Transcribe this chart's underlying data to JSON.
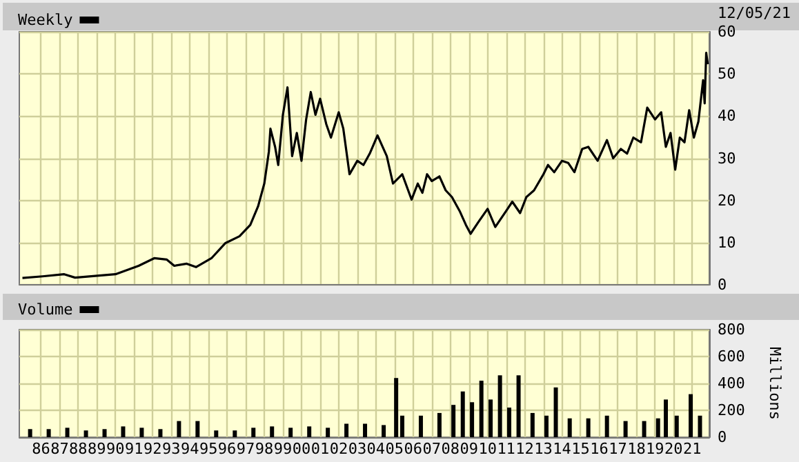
{
  "chart_data": [
    {
      "type": "line",
      "legend": "top left",
      "grid": true,
      "tick_labels": "y",
      "annotations": [
        "12/05/21"
      ],
      "xlim": [
        "1984-11",
        "2021-12"
      ],
      "xticks": [
        {
          "value": "1986-01",
          "label": null
        },
        {
          "value": "1987-01",
          "label": null
        },
        {
          "value": "1988-01",
          "label": null
        },
        {
          "value": "1989-01",
          "label": null
        },
        {
          "value": "1990-01",
          "label": null
        },
        {
          "value": "1991-01",
          "label": null
        },
        {
          "value": "1992-01",
          "label": null
        },
        {
          "value": "1993-01",
          "label": null
        },
        {
          "value": "1994-01",
          "label": null
        },
        {
          "value": "1995-01",
          "label": null
        },
        {
          "value": "1996-01",
          "label": null
        },
        {
          "value": "1997-01",
          "label": null
        },
        {
          "value": "1998-01",
          "label": null
        },
        {
          "value": "1999-01",
          "label": null
        },
        {
          "value": "2000-01",
          "label": null
        },
        {
          "value": "2001-01",
          "label": null
        },
        {
          "value": "2002-01",
          "label": null
        },
        {
          "value": "2003-01",
          "label": null
        },
        {
          "value": "2004-01",
          "label": null
        },
        {
          "value": "2005-01",
          "label": null
        },
        {
          "value": "2006-01",
          "label": null
        },
        {
          "value": "2007-01",
          "label": null
        },
        {
          "value": "2008-01",
          "label": null
        },
        {
          "value": "2009-01",
          "label": null
        },
        {
          "value": "2010-01",
          "label": null
        },
        {
          "value": "2011-01",
          "label": null
        },
        {
          "value": "2012-01",
          "label": null
        },
        {
          "value": "2013-01",
          "label": null
        },
        {
          "value": "2014-01",
          "label": null
        },
        {
          "value": "2015-01",
          "label": null
        },
        {
          "value": "2016-01",
          "label": null
        },
        {
          "value": "2017-01",
          "label": null
        },
        {
          "value": "2018-01",
          "label": null
        },
        {
          "value": "2019-01",
          "label": null
        },
        {
          "value": "2020-01",
          "label": null
        },
        {
          "value": "2021-01",
          "label": null
        }
      ],
      "ylim": [
        0,
        60
      ],
      "yticks": [
        0,
        10,
        20,
        30,
        40,
        50,
        60
      ],
      "series": [
        {
          "name": "Weekly",
          "color": "#000000",
          "x": [
            "1985-01",
            "1986-02",
            "1987-04",
            "1987-11",
            "1990-01",
            "1991-04",
            "1992-02",
            "1992-10",
            "1993-03",
            "1993-11",
            "1994-05",
            "1995-03",
            "1995-12",
            "1996-09",
            "1997-04",
            "1997-09",
            "1998-01",
            "1998-04",
            "1998-05",
            "1998-08",
            "1998-10",
            "1999-01",
            "1999-04",
            "1999-07",
            "1999-10",
            "2000-01",
            "2000-04",
            "2000-07",
            "2000-10",
            "2001-01",
            "2001-05",
            "2001-08",
            "2002-01",
            "2002-04",
            "2002-08",
            "2003-01",
            "2003-05",
            "2003-09",
            "2004-02",
            "2004-08",
            "2004-12",
            "2005-06",
            "2005-12",
            "2006-04",
            "2006-07",
            "2006-10",
            "2007-01",
            "2007-06",
            "2007-10",
            "2008-02",
            "2008-07",
            "2008-11",
            "2009-02",
            "2009-07",
            "2010-01",
            "2010-06",
            "2011-01",
            "2011-05",
            "2011-10",
            "2012-02",
            "2012-07",
            "2013-01",
            "2013-04",
            "2013-08",
            "2014-01",
            "2014-05",
            "2014-09",
            "2015-02",
            "2015-06",
            "2015-12",
            "2016-06",
            "2016-10",
            "2017-03",
            "2017-07",
            "2017-11",
            "2018-04",
            "2018-08",
            "2019-01",
            "2019-05",
            "2019-08",
            "2019-11",
            "2020-02",
            "2020-05",
            "2020-08",
            "2020-11",
            "2021-02",
            "2021-05",
            "2021-08",
            "2021-09",
            "2021-10",
            "2021-11"
          ],
          "values": [
            1.6,
            2.0,
            2.5,
            1.7,
            2.5,
            4.5,
            6.3,
            6.0,
            4.5,
            5.0,
            4.2,
            6.3,
            9.9,
            11.5,
            14.2,
            18.6,
            24,
            31.6,
            37,
            32.7,
            28.4,
            40.3,
            46.8,
            30.5,
            36,
            29.4,
            39.2,
            45.7,
            40.3,
            44.1,
            38.1,
            34.9,
            40.9,
            37,
            26.2,
            29.4,
            28.4,
            31.1,
            35.4,
            30.5,
            24,
            26.2,
            20.2,
            24,
            21.8,
            26.2,
            24.6,
            25.7,
            22.4,
            20.8,
            17.5,
            14.2,
            12.1,
            14.8,
            18.0,
            13.7,
            17.5,
            19.7,
            17.0,
            20.8,
            22.4,
            26.2,
            28.4,
            26.7,
            29.4,
            28.9,
            26.7,
            32.2,
            32.7,
            29.4,
            34.3,
            30,
            32.2,
            31.1,
            34.9,
            33.8,
            42.0,
            39.2,
            40.9,
            32.7,
            36.0,
            27.3,
            34.9,
            33.8,
            41.4,
            34.9,
            38.7,
            48.5,
            43,
            55,
            52.3
          ]
        }
      ]
    },
    {
      "type": "bar",
      "legend": "top left",
      "grid": true,
      "ylabel": "Millions",
      "xlim": [
        "1984-11",
        "2021-12"
      ],
      "xticks": [
        {
          "value": "1986-01",
          "label": "86"
        },
        {
          "value": "1987-01",
          "label": "87"
        },
        {
          "value": "1988-01",
          "label": "88"
        },
        {
          "value": "1989-01",
          "label": "89"
        },
        {
          "value": "1990-01",
          "label": "90"
        },
        {
          "value": "1991-01",
          "label": "91"
        },
        {
          "value": "1992-01",
          "label": "92"
        },
        {
          "value": "1993-01",
          "label": "93"
        },
        {
          "value": "1994-01",
          "label": "94"
        },
        {
          "value": "1995-01",
          "label": "95"
        },
        {
          "value": "1996-01",
          "label": "96"
        },
        {
          "value": "1997-01",
          "label": "97"
        },
        {
          "value": "1998-01",
          "label": "98"
        },
        {
          "value": "1999-01",
          "label": "99"
        },
        {
          "value": "2000-01",
          "label": "00"
        },
        {
          "value": "2001-01",
          "label": "01"
        },
        {
          "value": "2002-01",
          "label": "02"
        },
        {
          "value": "2003-01",
          "label": "03"
        },
        {
          "value": "2004-01",
          "label": "04"
        },
        {
          "value": "2005-01",
          "label": "05"
        },
        {
          "value": "2006-01",
          "label": "06"
        },
        {
          "value": "2007-01",
          "label": "07"
        },
        {
          "value": "2008-01",
          "label": "08"
        },
        {
          "value": "2009-01",
          "label": "09"
        },
        {
          "value": "2010-01",
          "label": "10"
        },
        {
          "value": "2011-01",
          "label": "11"
        },
        {
          "value": "2012-01",
          "label": "12"
        },
        {
          "value": "2013-01",
          "label": "13"
        },
        {
          "value": "2014-01",
          "label": "14"
        },
        {
          "value": "2015-01",
          "label": "15"
        },
        {
          "value": "2016-01",
          "label": "16"
        },
        {
          "value": "2017-01",
          "label": "17"
        },
        {
          "value": "2018-01",
          "label": "18"
        },
        {
          "value": "2019-01",
          "label": "19"
        },
        {
          "value": "2020-01",
          "label": "20"
        },
        {
          "value": "2021-01",
          "label": "21"
        }
      ],
      "ylim": [
        0,
        800
      ],
      "yticks": [
        0,
        200,
        400,
        600,
        800
      ],
      "series": [
        {
          "name": "Volume",
          "color": "#000000",
          "x": [
            "1985-06",
            "1986-06",
            "1987-06",
            "1988-06",
            "1989-06",
            "1990-06",
            "1991-06",
            "1992-06",
            "1993-06",
            "1994-06",
            "1995-06",
            "1996-06",
            "1997-06",
            "1998-06",
            "1999-06",
            "2000-06",
            "2001-06",
            "2002-06",
            "2003-06",
            "2004-06",
            "2005-02",
            "2005-06",
            "2006-06",
            "2007-06",
            "2008-03",
            "2008-09",
            "2009-03",
            "2009-09",
            "2010-03",
            "2010-09",
            "2011-03",
            "2011-09",
            "2012-06",
            "2013-03",
            "2013-09",
            "2014-06",
            "2015-06",
            "2016-06",
            "2017-06",
            "2018-06",
            "2019-03",
            "2019-08",
            "2020-03",
            "2020-12",
            "2021-06"
          ],
          "values": [
            60,
            60,
            70,
            50,
            60,
            80,
            70,
            60,
            120,
            120,
            50,
            50,
            70,
            80,
            70,
            80,
            70,
            100,
            100,
            90,
            440,
            160,
            160,
            180,
            240,
            340,
            260,
            420,
            280,
            460,
            220,
            460,
            180,
            160,
            370,
            140,
            140,
            160,
            120,
            120,
            140,
            280,
            160,
            320,
            160
          ]
        }
      ]
    }
  ]
}
